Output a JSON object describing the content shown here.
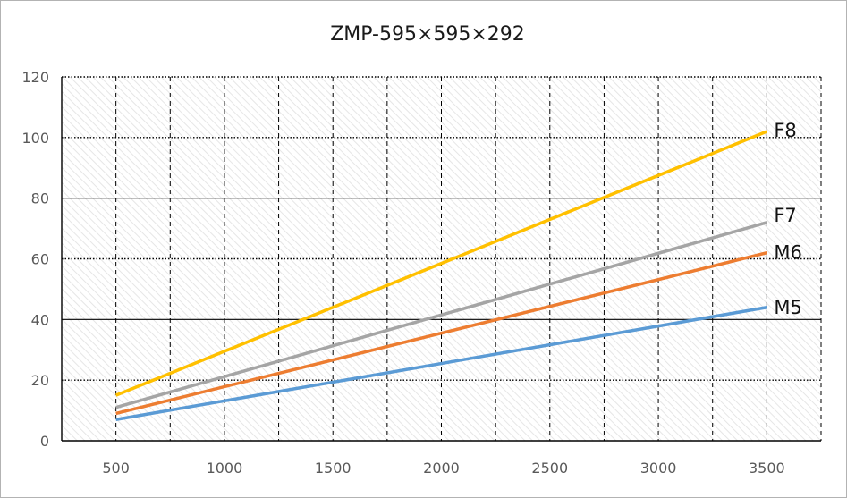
{
  "chart_data": {
    "type": "line",
    "title": "ZMP-595×595×292",
    "xlabel": "",
    "ylabel": "",
    "xlim": [
      250,
      3750
    ],
    "ylim": [
      0,
      120
    ],
    "x_ticks": [
      500,
      1000,
      1500,
      2000,
      2500,
      3000,
      3500
    ],
    "y_ticks": [
      0,
      20,
      40,
      60,
      80,
      100,
      120
    ],
    "grid": true,
    "legend": "none",
    "series": [
      {
        "name": "F8",
        "color": "#ffc000",
        "x": [
          500,
          3500
        ],
        "y": [
          15,
          102
        ]
      },
      {
        "name": "F7",
        "color": "#a5a5a5",
        "x": [
          500,
          3500
        ],
        "y": [
          11,
          72
        ]
      },
      {
        "name": "M6",
        "color": "#ed7d31",
        "x": [
          500,
          3500
        ],
        "y": [
          9,
          62
        ]
      },
      {
        "name": "M5",
        "color": "#5b9bd5",
        "x": [
          500,
          3500
        ],
        "y": [
          7,
          44
        ]
      }
    ]
  }
}
